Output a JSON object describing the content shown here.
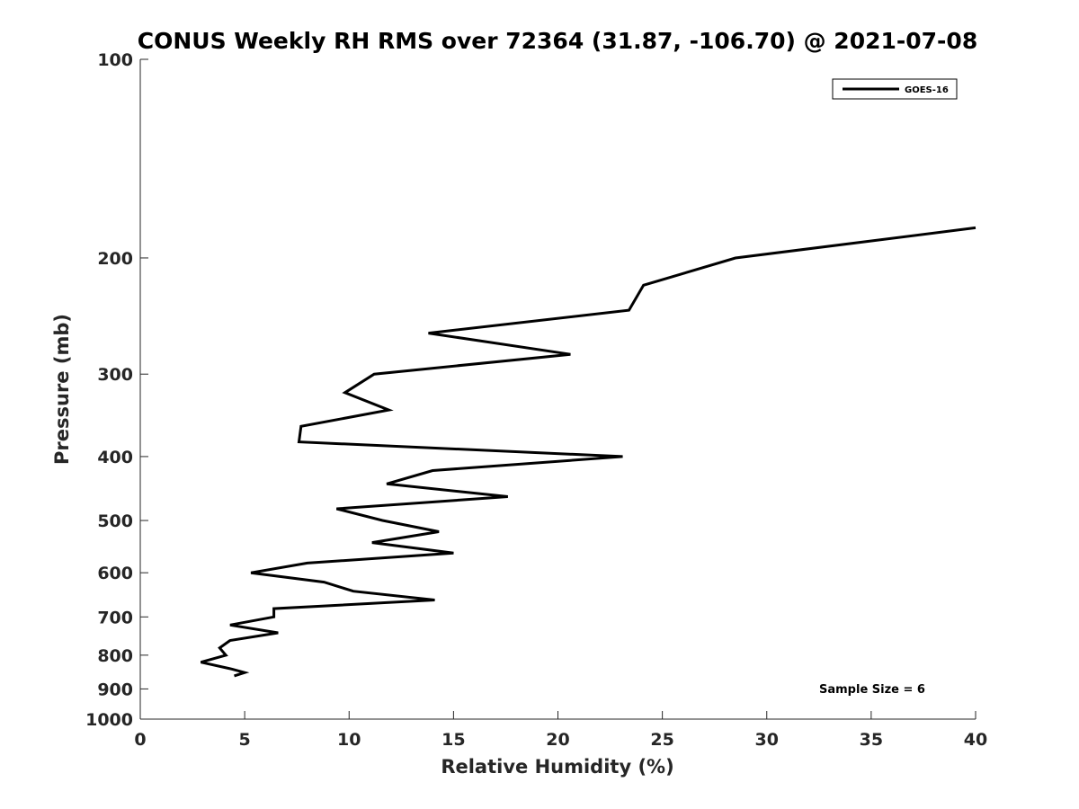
{
  "chart_data": {
    "type": "line",
    "title": "CONUS Weekly RH RMS over 72364 (31.87, -106.70) @ 2021-07-08",
    "xlabel": "Relative Humidity (%)",
    "ylabel": "Pressure (mb)",
    "xlim": [
      0,
      40
    ],
    "ylim": [
      100,
      1000
    ],
    "yscale": "log",
    "y_reversed": true,
    "grid": false,
    "legend_position": "top-right",
    "x_ticks": [
      0,
      5,
      10,
      15,
      20,
      25,
      30,
      35,
      40
    ],
    "y_ticks": [
      100,
      200,
      300,
      400,
      500,
      600,
      700,
      800,
      900,
      1000
    ],
    "x_tick_labels": [
      "0",
      "5",
      "10",
      "15",
      "20",
      "25",
      "30",
      "35",
      "40"
    ],
    "y_tick_labels": [
      "100",
      "200",
      "300",
      "400",
      "500",
      "600",
      "700",
      "800",
      "900",
      "1000"
    ],
    "annotation": "Sample Size = 6",
    "series": [
      {
        "name": "GOES-16",
        "color": "#000000",
        "points": [
          {
            "x": 40.0,
            "y": 180
          },
          {
            "x": 28.5,
            "y": 200
          },
          {
            "x": 24.1,
            "y": 220
          },
          {
            "x": 23.4,
            "y": 240
          },
          {
            "x": 13.8,
            "y": 260
          },
          {
            "x": 20.6,
            "y": 280
          },
          {
            "x": 11.2,
            "y": 300
          },
          {
            "x": 9.8,
            "y": 320
          },
          {
            "x": 11.9,
            "y": 340
          },
          {
            "x": 7.7,
            "y": 360
          },
          {
            "x": 7.6,
            "y": 380
          },
          {
            "x": 23.1,
            "y": 400
          },
          {
            "x": 14.0,
            "y": 420
          },
          {
            "x": 11.8,
            "y": 440
          },
          {
            "x": 17.6,
            "y": 460
          },
          {
            "x": 9.4,
            "y": 480
          },
          {
            "x": 11.6,
            "y": 500
          },
          {
            "x": 14.3,
            "y": 520
          },
          {
            "x": 11.1,
            "y": 540
          },
          {
            "x": 15.0,
            "y": 560
          },
          {
            "x": 8.0,
            "y": 580
          },
          {
            "x": 5.3,
            "y": 600
          },
          {
            "x": 8.8,
            "y": 620
          },
          {
            "x": 10.2,
            "y": 640
          },
          {
            "x": 14.1,
            "y": 660
          },
          {
            "x": 6.4,
            "y": 680
          },
          {
            "x": 6.4,
            "y": 700
          },
          {
            "x": 4.3,
            "y": 720
          },
          {
            "x": 6.6,
            "y": 740
          },
          {
            "x": 4.3,
            "y": 760
          },
          {
            "x": 3.8,
            "y": 780
          },
          {
            "x": 4.1,
            "y": 800
          },
          {
            "x": 2.9,
            "y": 820
          },
          {
            "x": 4.4,
            "y": 840
          },
          {
            "x": 5.0,
            "y": 850
          },
          {
            "x": 4.5,
            "y": 860
          }
        ]
      }
    ]
  }
}
